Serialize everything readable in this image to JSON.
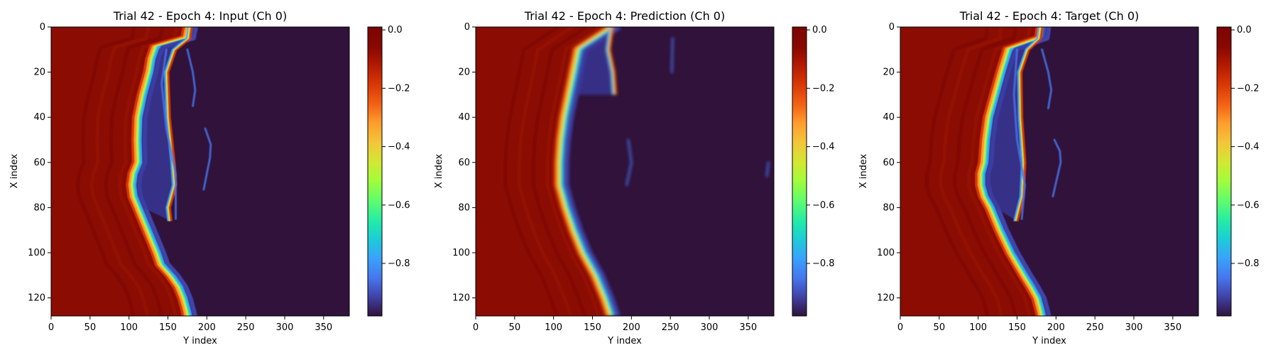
{
  "chart_data": [
    {
      "type": "heatmap",
      "title": "Trial 42 - Epoch 4: Input (Ch 0)",
      "xlabel": "Y index",
      "ylabel": "X index",
      "xlim": [
        0,
        383
      ],
      "ylim": [
        0,
        128
      ],
      "y_inverted": true,
      "x_ticks": [
        "0",
        "50",
        "100",
        "150",
        "200",
        "250",
        "300",
        "350"
      ],
      "y_ticks": [
        "0",
        "20",
        "40",
        "60",
        "80",
        "100",
        "120"
      ],
      "colorbar_ticks": [
        "0.0",
        "−0.2",
        "−0.4",
        "−0.6",
        "−0.8"
      ],
      "colorbar_range": [
        -0.98,
        0.01
      ],
      "colormap": "turbo",
      "front": [
        [
          0,
          173
        ],
        [
          5,
          170
        ],
        [
          9,
          130
        ],
        [
          14,
          125
        ],
        [
          20,
          122
        ],
        [
          30,
          114
        ],
        [
          40,
          108
        ],
        [
          50,
          107
        ],
        [
          60,
          108
        ],
        [
          65,
          102
        ],
        [
          70,
          100
        ],
        [
          75,
          102
        ],
        [
          80,
          108
        ],
        [
          90,
          120
        ],
        [
          100,
          132
        ],
        [
          105,
          137
        ],
        [
          110,
          150
        ],
        [
          115,
          160
        ],
        [
          120,
          166
        ],
        [
          125,
          170
        ],
        [
          128,
          172
        ]
      ],
      "inner_edge": [
        [
          0,
          180
        ],
        [
          5,
          178
        ],
        [
          10,
          160
        ],
        [
          20,
          150
        ],
        [
          40,
          152
        ],
        [
          60,
          158
        ],
        [
          70,
          160
        ],
        [
          80,
          152
        ],
        [
          86,
          154
        ]
      ],
      "filaments": [
        [
          [
            10,
            175
          ],
          [
            20,
            182
          ],
          [
            28,
            185
          ],
          [
            35,
            182
          ]
        ],
        [
          [
            45,
            198
          ],
          [
            52,
            205
          ],
          [
            58,
            204
          ],
          [
            72,
            196
          ]
        ],
        [
          [
            10,
            148
          ],
          [
            25,
            142
          ],
          [
            45,
            148
          ],
          [
            65,
            160
          ],
          [
            85,
            160
          ]
        ]
      ],
      "blur": 0.6
    },
    {
      "type": "heatmap",
      "title": "Trial 42 - Epoch 4: Prediction (Ch 0)",
      "xlabel": "Y index",
      "ylabel": "X index",
      "xlim": [
        0,
        383
      ],
      "ylim": [
        0,
        128
      ],
      "y_inverted": true,
      "x_ticks": [
        "0",
        "50",
        "100",
        "150",
        "200",
        "250",
        "300",
        "350"
      ],
      "y_ticks": [
        "0",
        "20",
        "40",
        "60",
        "80",
        "100",
        "120"
      ],
      "colorbar_ticks": [
        "0.0",
        "−0.2",
        "−0.4",
        "−0.6",
        "−0.8"
      ],
      "colorbar_range": [
        -0.98,
        0.01
      ],
      "colormap": "turbo",
      "front": [
        [
          0,
          172
        ],
        [
          5,
          150
        ],
        [
          10,
          128
        ],
        [
          20,
          122
        ],
        [
          30,
          116
        ],
        [
          40,
          110
        ],
        [
          50,
          106
        ],
        [
          60,
          104
        ],
        [
          70,
          104
        ],
        [
          80,
          112
        ],
        [
          90,
          122
        ],
        [
          100,
          134
        ],
        [
          110,
          150
        ],
        [
          120,
          162
        ],
        [
          128,
          170
        ]
      ],
      "inner_edge": [
        [
          0,
          176
        ],
        [
          10,
          172
        ],
        [
          20,
          178
        ],
        [
          30,
          180
        ]
      ],
      "filaments": [
        [
          [
            50,
            196
          ],
          [
            60,
            200
          ],
          [
            70,
            194
          ]
        ],
        [
          [
            5,
            253
          ],
          [
            20,
            252
          ]
        ],
        [
          [
            60,
            376
          ],
          [
            66,
            374
          ]
        ]
      ],
      "blur": 2.2
    },
    {
      "type": "heatmap",
      "title": "Trial 42 - Epoch 4: Target (Ch 0)",
      "xlabel": "Y index",
      "ylabel": "X index",
      "xlim": [
        0,
        383
      ],
      "ylim": [
        0,
        128
      ],
      "y_inverted": true,
      "x_ticks": [
        "0",
        "50",
        "100",
        "150",
        "200",
        "250",
        "300",
        "350"
      ],
      "y_ticks": [
        "0",
        "20",
        "40",
        "60",
        "80",
        "100",
        "120"
      ],
      "colorbar_ticks": [
        "0.0",
        "−0.2",
        "−0.4",
        "−0.6",
        "−0.8"
      ],
      "colorbar_range": [
        -0.98,
        0.01
      ],
      "colormap": "turbo",
      "front": [
        [
          0,
          178
        ],
        [
          5,
          176
        ],
        [
          10,
          135
        ],
        [
          20,
          126
        ],
        [
          30,
          118
        ],
        [
          40,
          110
        ],
        [
          50,
          106
        ],
        [
          60,
          104
        ],
        [
          65,
          100
        ],
        [
          70,
          100
        ],
        [
          75,
          104
        ],
        [
          80,
          112
        ],
        [
          90,
          124
        ],
        [
          100,
          138
        ],
        [
          110,
          155
        ],
        [
          115,
          164
        ],
        [
          120,
          172
        ],
        [
          125,
          176
        ],
        [
          128,
          178
        ]
      ],
      "inner_edge": [
        [
          0,
          182
        ],
        [
          5,
          180
        ],
        [
          10,
          165
        ],
        [
          20,
          155
        ],
        [
          40,
          156
        ],
        [
          60,
          160
        ],
        [
          75,
          158
        ],
        [
          86,
          150
        ]
      ],
      "filaments": [
        [
          [
            10,
            182
          ],
          [
            20,
            190
          ],
          [
            28,
            194
          ],
          [
            36,
            190
          ]
        ],
        [
          [
            50,
            198
          ],
          [
            55,
            205
          ],
          [
            60,
            206
          ],
          [
            75,
            196
          ]
        ],
        [
          [
            10,
            150
          ],
          [
            30,
            146
          ],
          [
            50,
            150
          ],
          [
            70,
            160
          ],
          [
            85,
            156
          ]
        ]
      ],
      "blur": 0.6
    }
  ]
}
